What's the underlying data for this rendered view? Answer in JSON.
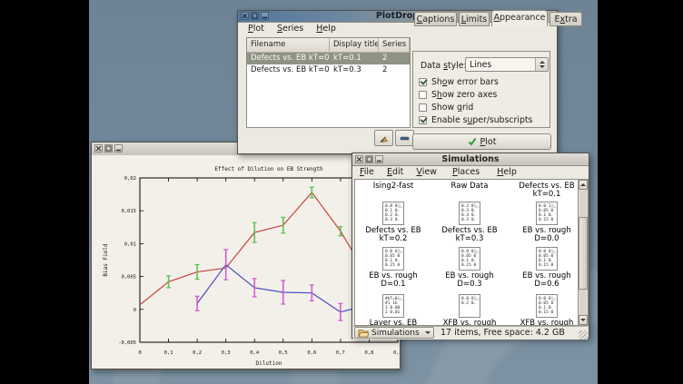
{
  "plotdrop": {
    "title": "PlotDrop",
    "window_icons": [
      "close-icon",
      "maximize-icon",
      "minimize-icon"
    ],
    "menus": [
      {
        "label": "Plot",
        "u": 0
      },
      {
        "label": "Series",
        "u": 0
      },
      {
        "label": "Help",
        "u": 0
      }
    ],
    "table": {
      "columns": [
        "Filename",
        "Display title",
        "Series"
      ],
      "rows": [
        {
          "filename": "Defects vs. EB kT=0.1",
          "display_title": "kT=0.1",
          "series": "2"
        },
        {
          "filename": "Defects vs. EB kT=0.3",
          "display_title": "kT=0.3",
          "series": "2"
        }
      ]
    },
    "table_action_icons": [
      "broom-clear-icon",
      "remove-minus-icon"
    ],
    "tabs": [
      {
        "label": "Captions",
        "u": 0
      },
      {
        "label": "Limits",
        "u": 0
      },
      {
        "label": "Appearance",
        "u": 0
      },
      {
        "label": "Extra",
        "u": 1
      }
    ],
    "appearance": {
      "data_style_label": {
        "label": "Data style:",
        "u": 5
      },
      "data_style_value": "Lines",
      "checkboxes": [
        {
          "label": "Show error bars",
          "u": 2,
          "checked": true
        },
        {
          "label": "Show zero axes",
          "u": 1,
          "checked": false
        },
        {
          "label": "Show grid",
          "u": 5,
          "checked": false
        },
        {
          "label": "Enable super/subscripts",
          "u": 8,
          "checked": true
        }
      ]
    },
    "plot_button": {
      "label": "Plot",
      "u": 0,
      "icon": "green-check-icon"
    }
  },
  "chart_data": {
    "type": "line",
    "title": "Effect of Dilution on EB Strength",
    "xlabel": "Dilution",
    "ylabel": "Bias Field",
    "xlim": [
      0,
      0.9
    ],
    "ylim": [
      -0.005,
      0.02
    ],
    "grid": false,
    "xtick_values": [
      0,
      0.1,
      0.2,
      0.3,
      0.4,
      0.5,
      0.6,
      0.7,
      0.8,
      0.9
    ],
    "xtick_labels": [
      "0",
      "0,1",
      "0,2",
      "0,3",
      "0,4",
      "0,5",
      "0,6",
      "0,7",
      "0,8",
      "0,9"
    ],
    "ytick_values": [
      -0.005,
      0,
      0.005,
      0.01,
      0.015,
      0.02
    ],
    "ytick_labels": [
      "-0,005",
      "0",
      "0,005",
      "0,01",
      "0,015",
      "0,02"
    ],
    "series": [
      {
        "name": "kT=0.1",
        "line_color": "#c8433e",
        "error_color": "#57c152",
        "x": [
          0,
          0.1,
          0.2,
          0.3,
          0.4,
          0.5,
          0.6,
          0.7,
          0.77
        ],
        "y": [
          0.0007,
          0.0042,
          0.0057,
          0.0063,
          0.0117,
          0.0128,
          0.0178,
          0.0119,
          0.0068
        ],
        "yerr": [
          0,
          0.0009,
          0.0011,
          0,
          0.0015,
          0.0012,
          0.0008,
          0.0007,
          0
        ]
      },
      {
        "name": "kT=0.3",
        "line_color": "#4b49c6",
        "error_color": "#cf55cf",
        "x": [
          0.2,
          0.3,
          0.4,
          0.5,
          0.6,
          0.7,
          0.78
        ],
        "y": [
          0.0009,
          0.0068,
          0.0033,
          0.0026,
          0.0025,
          -0.0004,
          0.0005
        ],
        "yerr": [
          0.0011,
          0.0023,
          0.0014,
          0.0018,
          0.0012,
          0.0013,
          0
        ]
      }
    ]
  },
  "simulations": {
    "title": "Simulations",
    "menus": [
      {
        "label": "File",
        "u": 0
      },
      {
        "label": "Edit",
        "u": 0
      },
      {
        "label": "View",
        "u": 0
      },
      {
        "label": "Places",
        "u": 0
      },
      {
        "label": "Help",
        "u": 0
      }
    ],
    "files": [
      {
        "label1": "Ising2-fast",
        "label2": "",
        "icon_lines": []
      },
      {
        "label1": "Raw Data",
        "label2": "",
        "icon_lines": []
      },
      {
        "label1": "Defects vs. EB",
        "label2": "kT=0.1",
        "icon_lines": []
      },
      {
        "label1": "Defects vs. EB",
        "label2": "kT=0.2",
        "icon_lines": [
          "0.0 0.",
          "0.1 0.",
          "0.2 0.",
          "0.3 0."
        ]
      },
      {
        "label1": "Defects vs. EB",
        "label2": "kT=0.3",
        "icon_lines": [
          "0.2 0.",
          "0.3 0.",
          "0.4 0.",
          "0.3 0."
        ]
      },
      {
        "label1": "EB vs. rough",
        "label2": "D=0.0",
        "icon_lines": [
          "0.0 1.",
          "0.05 0",
          "0.1 0.",
          "0.15 0"
        ]
      },
      {
        "label1": "EB vs. rough",
        "label2": "D=0.1",
        "icon_lines": [
          "0.0 0.",
          "0.05 0",
          "0.1 0.",
          "0.15 0"
        ]
      },
      {
        "label1": "EB vs. rough",
        "label2": "D=0.3",
        "icon_lines": [
          "0.0 0.",
          "0.05 0",
          "0.1 0.",
          "0.15 0"
        ]
      },
      {
        "label1": "EB vs. rough",
        "label2": "D=0.6",
        "icon_lines": [
          "0.0 0.",
          "0.05 0",
          "0.1 0.",
          "0.15 0"
        ]
      },
      {
        "label1": "Layer vs. EB",
        "label2": "",
        "icon_lines": [
          "#kT=0.",
          "#1 1k",
          "1 0.00",
          "2 0.01"
        ]
      },
      {
        "label1": "XFB vs. rough",
        "label2": "",
        "icon_lines": [
          "0.0 0.",
          "0.2 0.",
          "",
          ""
        ]
      },
      {
        "label1": "XFB vs. rough",
        "label2": "",
        "icon_lines": [
          "0.0 0.",
          "0.05 0",
          "0.1 0.",
          "0.15 0"
        ]
      }
    ],
    "statusbar": {
      "location_label": "Simulations",
      "location_icon": "open-folder-icon",
      "items_text": "17 items, Free space: 4.2 GB"
    }
  }
}
